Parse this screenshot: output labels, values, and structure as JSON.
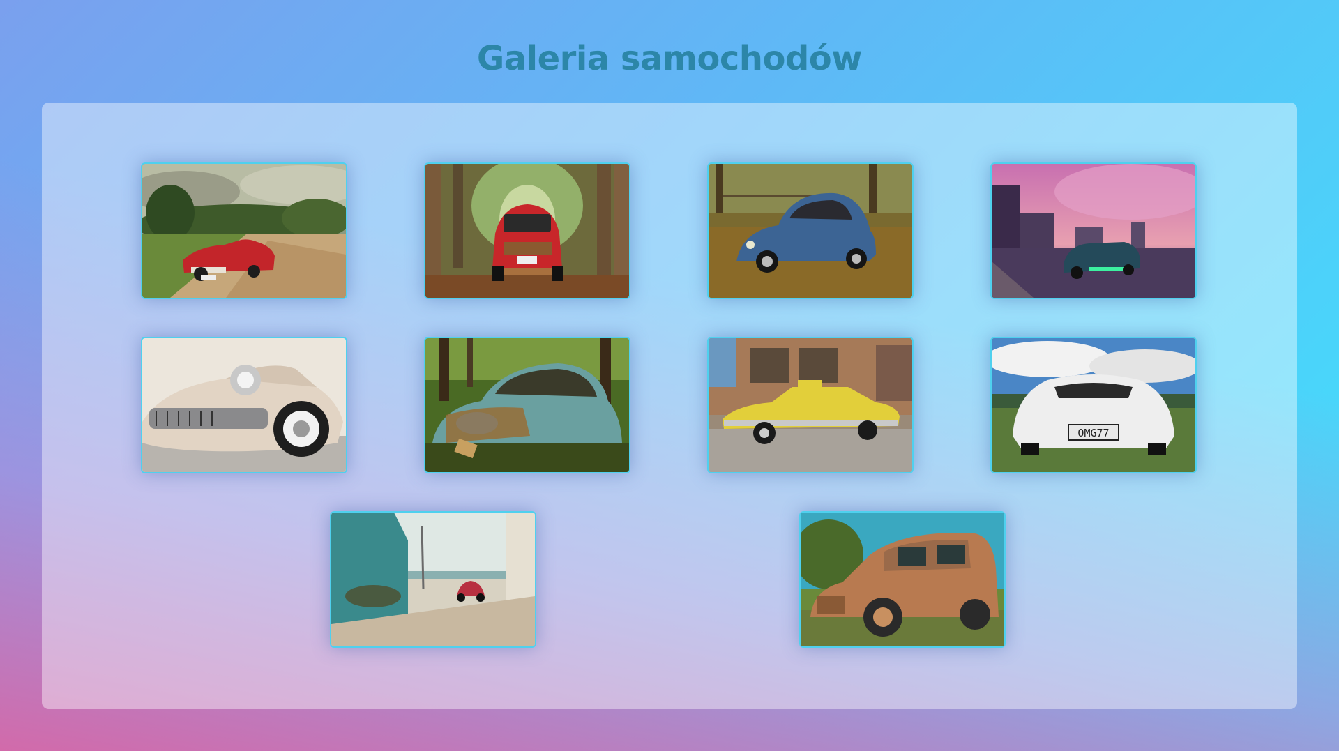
{
  "page": {
    "title": "Galeria samochodów"
  },
  "gallery": {
    "photos": [
      {
        "subject": "red vintage convertible on a dirt road under stormy sky"
      },
      {
        "subject": "red small car rear view on a leaf-covered forest road"
      },
      {
        "subject": "blue beetle parked among autumn leaves"
      },
      {
        "subject": "dark blue classic car on city street at sunset"
      },
      {
        "subject": "cream classic car front grille close-up"
      },
      {
        "subject": "abandoned rusty teal car in forest"
      },
      {
        "subject": "yellow vintage taxi in front of old building"
      },
      {
        "subject": "white sports car with license plate OMG 77"
      },
      {
        "subject": "small red beetle on sandy road to the sea"
      },
      {
        "subject": "rusty old van in grass under blue sky"
      }
    ],
    "plate_text": "OMG77"
  },
  "colors": {
    "title": "#2c86a8",
    "card_border": "#4fd0ee"
  }
}
